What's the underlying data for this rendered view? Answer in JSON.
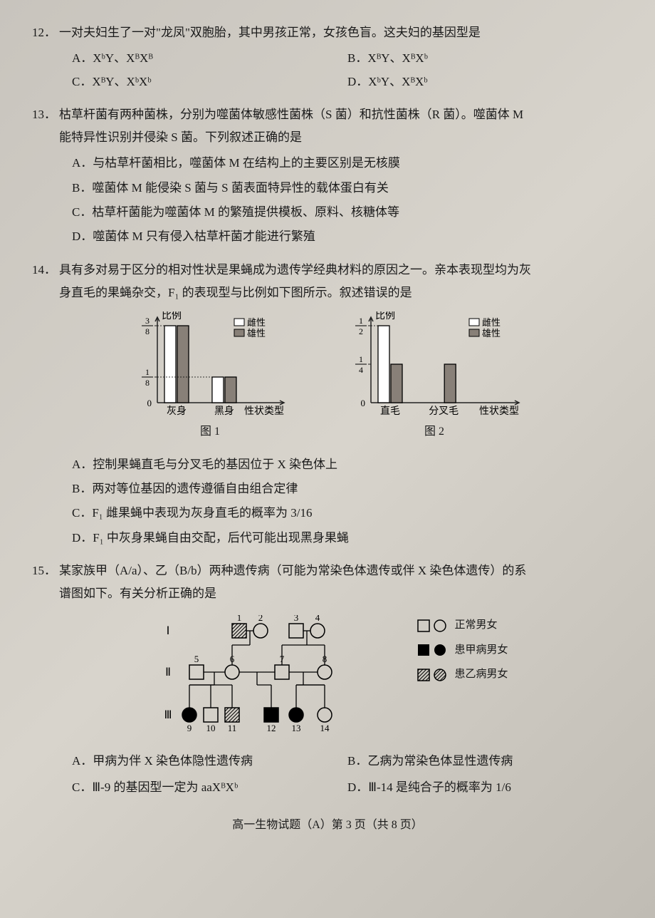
{
  "q12": {
    "num": "12．",
    "stem": "一对夫妇生了一对\"龙凤\"双胞胎，其中男孩正常，女孩色盲。这夫妇的基因型是",
    "opts": {
      "A": "A．XᵇY、XᴮXᴮ",
      "B": "B．XᴮY、XᴮXᵇ",
      "C": "C．XᴮY、XᵇXᵇ",
      "D": "D．XᵇY、XᴮXᵇ"
    }
  },
  "q13": {
    "num": "13．",
    "stem1": "枯草杆菌有两种菌株，分别为噬菌体敏感性菌株（S 菌）和抗性菌株（R 菌）。噬菌体 M",
    "stem2": "能特异性识别并侵染 S 菌。下列叙述正确的是",
    "opts": {
      "A": "A．与枯草杆菌相比，噬菌体 M 在结构上的主要区别是无核膜",
      "B": "B．噬菌体 M 能侵染 S 菌与 S 菌表面特异性的载体蛋白有关",
      "C": "C．枯草杆菌能为噬菌体 M 的繁殖提供模板、原料、核糖体等",
      "D": "D．噬菌体 M 只有侵入枯草杆菌才能进行繁殖"
    }
  },
  "q14": {
    "num": "14．",
    "stem1": "具有多对易于区分的相对性状是果蝇成为遗传学经典材料的原因之一。亲本表现型均为灰",
    "stem2": "身直毛的果蝇杂交，F₁ 的表现型与比例如下图所示。叙述错误的是",
    "opts": {
      "A": "A．控制果蝇直毛与分叉毛的基因位于 X 染色体上",
      "B": "B．两对等位基因的遗传遵循自由组合定律",
      "C": "C．F₁ 雌果蝇中表现为灰身直毛的概率为 3/16",
      "D": "D．F₁ 中灰身果蝇自由交配，后代可能出现黑身果蝇"
    },
    "chart1": {
      "ylabel": "比例",
      "yticks": [
        "3/8",
        "1/8",
        "0"
      ],
      "ytick_pos": [
        0.75,
        0.25,
        0
      ],
      "cats": [
        "灰身",
        "黑身"
      ],
      "xlabel": "性状类型",
      "legend": [
        "雌性",
        "雄性"
      ],
      "series": {
        "female": [
          0.75,
          0.25
        ],
        "male": [
          0.75,
          0.25
        ]
      },
      "colors": {
        "female": "#ffffff",
        "male": "#888078",
        "axis": "#222",
        "hatch": "#555"
      },
      "title": "图 1"
    },
    "chart2": {
      "ylabel": "比例",
      "yticks": [
        "1/2",
        "1/4",
        "0"
      ],
      "ytick_pos": [
        1.0,
        0.5,
        0
      ],
      "cats": [
        "直毛",
        "分叉毛"
      ],
      "xlabel": "性状类型",
      "legend": [
        "雌性",
        "雄性"
      ],
      "series": {
        "female": [
          1.0,
          0
        ],
        "male": [
          0.5,
          0.5
        ]
      },
      "colors": {
        "female": "#ffffff",
        "male": "#888078",
        "axis": "#222"
      },
      "title": "图 2"
    }
  },
  "q15": {
    "num": "15．",
    "stem1": "某家族甲（A/a）、乙（B/b）两种遗传病（可能为常染色体遗传或伴 X 染色体遗传）的系",
    "stem2": "谱图如下。有关分析正确的是",
    "opts": {
      "A": "A．甲病为伴 X 染色体隐性遗传病",
      "B": "B．乙病为常染色体显性遗传病",
      "C": "C．Ⅲ-9 的基因型一定为 aaXᴮXᵇ",
      "D": "D．Ⅲ-14 是纯合子的概率为 1/6"
    },
    "legend": {
      "normal": "正常男女",
      "jia": "患甲病男女",
      "yi": "患乙病男女"
    },
    "generations": [
      "Ⅰ",
      "Ⅱ",
      "Ⅲ"
    ],
    "individuals": [
      "1",
      "2",
      "3",
      "4",
      "5",
      "6",
      "7",
      "8",
      "9",
      "10",
      "11",
      "12",
      "13",
      "14"
    ],
    "colors": {
      "stroke": "#000",
      "fill_jia": "#000",
      "bg": "transparent"
    }
  },
  "footer": "高一生物试题（A）第 3 页（共 8 页）"
}
